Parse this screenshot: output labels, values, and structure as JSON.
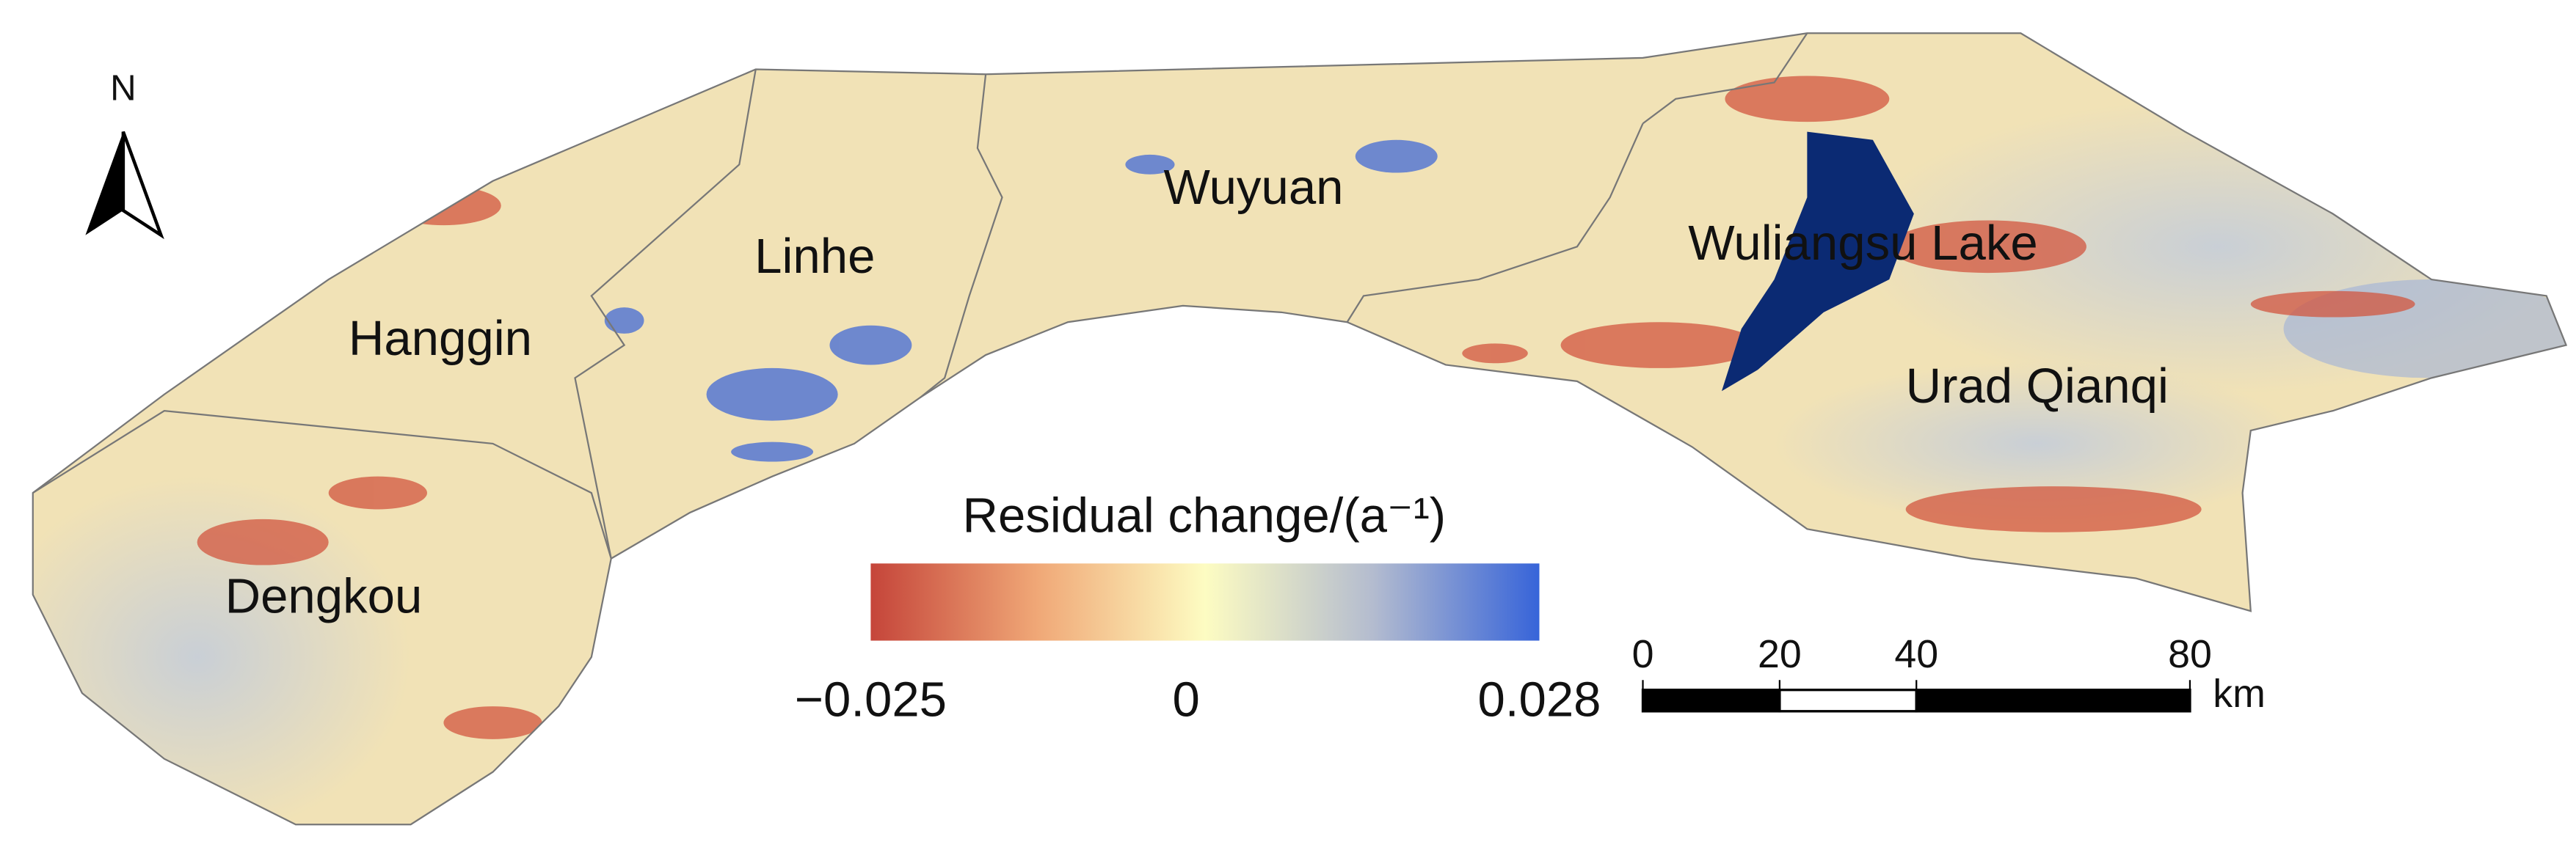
{
  "north": "N",
  "regions": [
    "Hanggin",
    "Linhe",
    "Wuyuan",
    "Wuliangsu Lake",
    "Dengkou",
    "Urad Qianqi"
  ],
  "legend": {
    "title": "Residual change/(a⁻¹)",
    "lim": [
      -0.025,
      0.028
    ],
    "ticks": [
      {
        "value": -0.025,
        "label": "−0.025"
      },
      0,
      0.028
    ]
  },
  "scale_bar": {
    "lim": [
      0,
      80
    ],
    "ticks": [
      0,
      20,
      40,
      80
    ],
    "unit": "km"
  }
}
